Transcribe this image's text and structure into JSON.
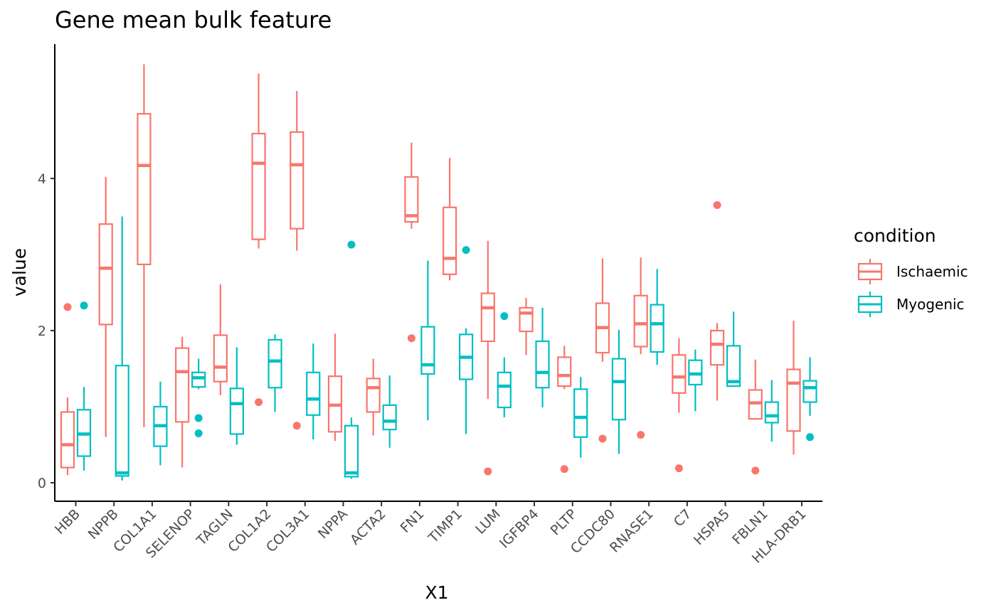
{
  "chart_data": {
    "type": "boxplot",
    "title": "Gene mean bulk feature",
    "xlabel": "X1",
    "ylabel": "value",
    "ylim": [
      -0.25,
      5.75
    ],
    "yticks": [
      0,
      2,
      4
    ],
    "grid": false,
    "legend": {
      "title": "condition",
      "position": "right"
    },
    "categories": [
      "HBB",
      "NPPB",
      "COL1A1",
      "SELENOP",
      "TAGLN",
      "COL1A2",
      "COL3A1",
      "NPPA",
      "ACTA2",
      "FN1",
      "TIMP1",
      "LUM",
      "IGFBP4",
      "PLTP",
      "CCDC80",
      "RNASE1",
      "C7",
      "HSPA5",
      "FBLN1",
      "HLA-DRB1"
    ],
    "series": [
      {
        "name": "Ischaemic",
        "color": "#F8766D",
        "boxes": [
          {
            "min": 0.1,
            "q1": 0.2,
            "median": 0.5,
            "q3": 0.93,
            "max": 1.12,
            "outliers": [
              2.31
            ]
          },
          {
            "min": 0.6,
            "q1": 2.08,
            "median": 2.82,
            "q3": 3.4,
            "max": 4.02,
            "outliers": []
          },
          {
            "min": 0.73,
            "q1": 2.87,
            "median": 4.17,
            "q3": 4.85,
            "max": 5.5,
            "outliers": []
          },
          {
            "min": 0.2,
            "q1": 0.8,
            "median": 1.46,
            "q3": 1.77,
            "max": 1.92,
            "outliers": []
          },
          {
            "min": 1.15,
            "q1": 1.33,
            "median": 1.52,
            "q3": 1.94,
            "max": 2.61,
            "outliers": []
          },
          {
            "min": 3.08,
            "q1": 3.2,
            "median": 4.2,
            "q3": 4.59,
            "max": 5.38,
            "outliers": [
              1.06
            ]
          },
          {
            "min": 3.05,
            "q1": 3.34,
            "median": 4.18,
            "q3": 4.61,
            "max": 5.15,
            "outliers": [
              0.75
            ]
          },
          {
            "min": 0.55,
            "q1": 0.67,
            "median": 1.02,
            "q3": 1.4,
            "max": 1.96,
            "outliers": []
          },
          {
            "min": 0.62,
            "q1": 0.93,
            "median": 1.25,
            "q3": 1.37,
            "max": 1.63,
            "outliers": []
          },
          {
            "min": 3.34,
            "q1": 3.43,
            "median": 3.51,
            "q3": 4.02,
            "max": 4.47,
            "outliers": [
              1.9
            ]
          },
          {
            "min": 2.66,
            "q1": 2.74,
            "median": 2.95,
            "q3": 3.62,
            "max": 4.27,
            "outliers": []
          },
          {
            "min": 1.1,
            "q1": 1.86,
            "median": 2.3,
            "q3": 2.49,
            "max": 3.18,
            "outliers": [
              0.15
            ]
          },
          {
            "min": 1.68,
            "q1": 1.99,
            "median": 2.23,
            "q3": 2.3,
            "max": 2.43,
            "outliers": []
          },
          {
            "min": 1.23,
            "q1": 1.27,
            "median": 1.41,
            "q3": 1.65,
            "max": 1.8,
            "outliers": [
              0.18
            ]
          },
          {
            "min": 1.59,
            "q1": 1.71,
            "median": 2.04,
            "q3": 2.36,
            "max": 2.95,
            "outliers": [
              0.58
            ]
          },
          {
            "min": 1.69,
            "q1": 1.79,
            "median": 2.09,
            "q3": 2.46,
            "max": 2.96,
            "outliers": [
              0.63
            ]
          },
          {
            "min": 0.92,
            "q1": 1.18,
            "median": 1.39,
            "q3": 1.68,
            "max": 1.9,
            "outliers": [
              0.19
            ]
          },
          {
            "min": 1.08,
            "q1": 1.55,
            "median": 1.82,
            "q3": 2.0,
            "max": 2.1,
            "outliers": [
              3.65
            ]
          },
          {
            "min": 0.84,
            "q1": 0.84,
            "median": 1.05,
            "q3": 1.22,
            "max": 1.62,
            "outliers": [
              0.16
            ]
          },
          {
            "min": 0.37,
            "q1": 0.68,
            "median": 1.31,
            "q3": 1.49,
            "max": 2.13,
            "outliers": []
          }
        ]
      },
      {
        "name": "Myogenic",
        "color": "#00BFC4",
        "boxes": [
          {
            "min": 0.16,
            "q1": 0.35,
            "median": 0.64,
            "q3": 0.96,
            "max": 1.26,
            "outliers": [
              2.33
            ]
          },
          {
            "min": 0.03,
            "q1": 0.09,
            "median": 0.13,
            "q3": 1.54,
            "max": 3.5,
            "outliers": []
          },
          {
            "min": 0.23,
            "q1": 0.48,
            "median": 0.75,
            "q3": 1.0,
            "max": 1.33,
            "outliers": []
          },
          {
            "min": 1.23,
            "q1": 1.26,
            "median": 1.38,
            "q3": 1.45,
            "max": 1.63,
            "outliers": [
              0.85,
              0.65
            ]
          },
          {
            "min": 0.5,
            "q1": 0.64,
            "median": 1.04,
            "q3": 1.24,
            "max": 1.78,
            "outliers": []
          },
          {
            "min": 0.93,
            "q1": 1.25,
            "median": 1.6,
            "q3": 1.88,
            "max": 1.95,
            "outliers": []
          },
          {
            "min": 0.57,
            "q1": 0.89,
            "median": 1.1,
            "q3": 1.45,
            "max": 1.83,
            "outliers": []
          },
          {
            "min": 0.05,
            "q1": 0.08,
            "median": 0.13,
            "q3": 0.75,
            "max": 0.86,
            "outliers": [
              3.13
            ]
          },
          {
            "min": 0.46,
            "q1": 0.7,
            "median": 0.81,
            "q3": 1.02,
            "max": 1.41,
            "outliers": []
          },
          {
            "min": 0.82,
            "q1": 1.43,
            "median": 1.55,
            "q3": 2.05,
            "max": 2.92,
            "outliers": []
          },
          {
            "min": 0.64,
            "q1": 1.36,
            "median": 1.65,
            "q3": 1.95,
            "max": 2.03,
            "outliers": [
              3.06
            ]
          },
          {
            "min": 0.86,
            "q1": 0.99,
            "median": 1.27,
            "q3": 1.45,
            "max": 1.65,
            "outliers": [
              2.19
            ]
          },
          {
            "min": 0.99,
            "q1": 1.25,
            "median": 1.45,
            "q3": 1.86,
            "max": 2.3,
            "outliers": []
          },
          {
            "min": 0.33,
            "q1": 0.6,
            "median": 0.86,
            "q3": 1.23,
            "max": 1.39,
            "outliers": []
          },
          {
            "min": 0.38,
            "q1": 0.83,
            "median": 1.33,
            "q3": 1.63,
            "max": 2.01,
            "outliers": []
          },
          {
            "min": 1.55,
            "q1": 1.72,
            "median": 2.09,
            "q3": 2.34,
            "max": 2.81,
            "outliers": []
          },
          {
            "min": 0.94,
            "q1": 1.29,
            "median": 1.43,
            "q3": 1.61,
            "max": 1.75,
            "outliers": []
          },
          {
            "min": 1.26,
            "q1": 1.27,
            "median": 1.33,
            "q3": 1.8,
            "max": 2.25,
            "outliers": []
          },
          {
            "min": 0.54,
            "q1": 0.79,
            "median": 0.88,
            "q3": 1.06,
            "max": 1.35,
            "outliers": []
          },
          {
            "min": 0.88,
            "q1": 1.06,
            "median": 1.25,
            "q3": 1.34,
            "max": 1.65,
            "outliers": [
              0.6
            ]
          }
        ]
      }
    ]
  }
}
